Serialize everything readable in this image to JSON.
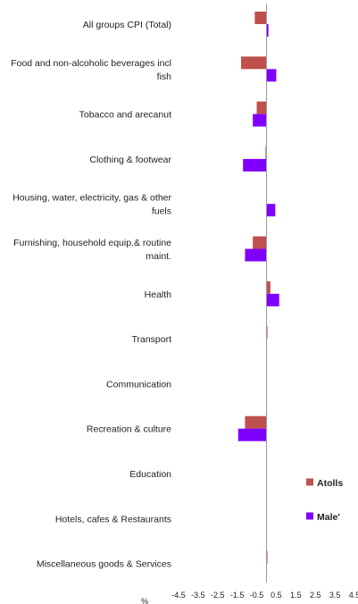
{
  "chart_data": {
    "type": "bar",
    "orientation": "horizontal",
    "categories": [
      "All groups CPI (Total)",
      "Food and non-alcoholic beverages incl fish",
      "Tobacco and arecanut",
      "Clothing & footwear",
      "Housing, water, electricity, gas & other fuels",
      "Furnishing, household equip.& routine maint.",
      "Health",
      "Transport",
      "Communication",
      "Recreation & culture",
      "Education",
      "Hotels, cafes & Restaurants",
      "Miscellaneous goods & Services"
    ],
    "category_lines": [
      [
        "All groups CPI (Total)"
      ],
      [
        "Food and non-alcoholic beverages incl",
        "fish"
      ],
      [
        "Tobacco and arecanut"
      ],
      [
        "Clothing & footwear"
      ],
      [
        "Housing, water, electricity, gas & other",
        "fuels"
      ],
      [
        "Furnishing, household equip.& routine",
        "maint."
      ],
      [
        "Health"
      ],
      [
        "Transport"
      ],
      [
        "Communication"
      ],
      [
        "Recreation & culture"
      ],
      [
        "Education"
      ],
      [
        "Hotels, cafes & Restaurants"
      ],
      [
        "Miscellaneous goods & Services"
      ]
    ],
    "series": [
      {
        "name": "Atolls",
        "color": "#c0504d",
        "values": [
          -0.6,
          -1.3,
          -0.5,
          -0.05,
          0,
          -0.7,
          0.2,
          0.05,
          0,
          -1.1,
          0,
          0,
          0.05
        ]
      },
      {
        "name": "Male'",
        "color": "#7f00ff",
        "values": [
          0.1,
          0.5,
          -0.7,
          -1.2,
          0.45,
          -1.1,
          0.65,
          0,
          0,
          -1.45,
          0,
          0,
          0
        ]
      }
    ],
    "xlim": [
      -4.5,
      4.5
    ],
    "xticks": [
      "-4.5",
      "-3.5",
      "-2.5",
      "-1.5",
      "-0.5",
      "0.5",
      "1.5",
      "2.5",
      "3.5",
      "4.5"
    ],
    "xlabel": "%",
    "legend_position": "right",
    "grid": false
  }
}
